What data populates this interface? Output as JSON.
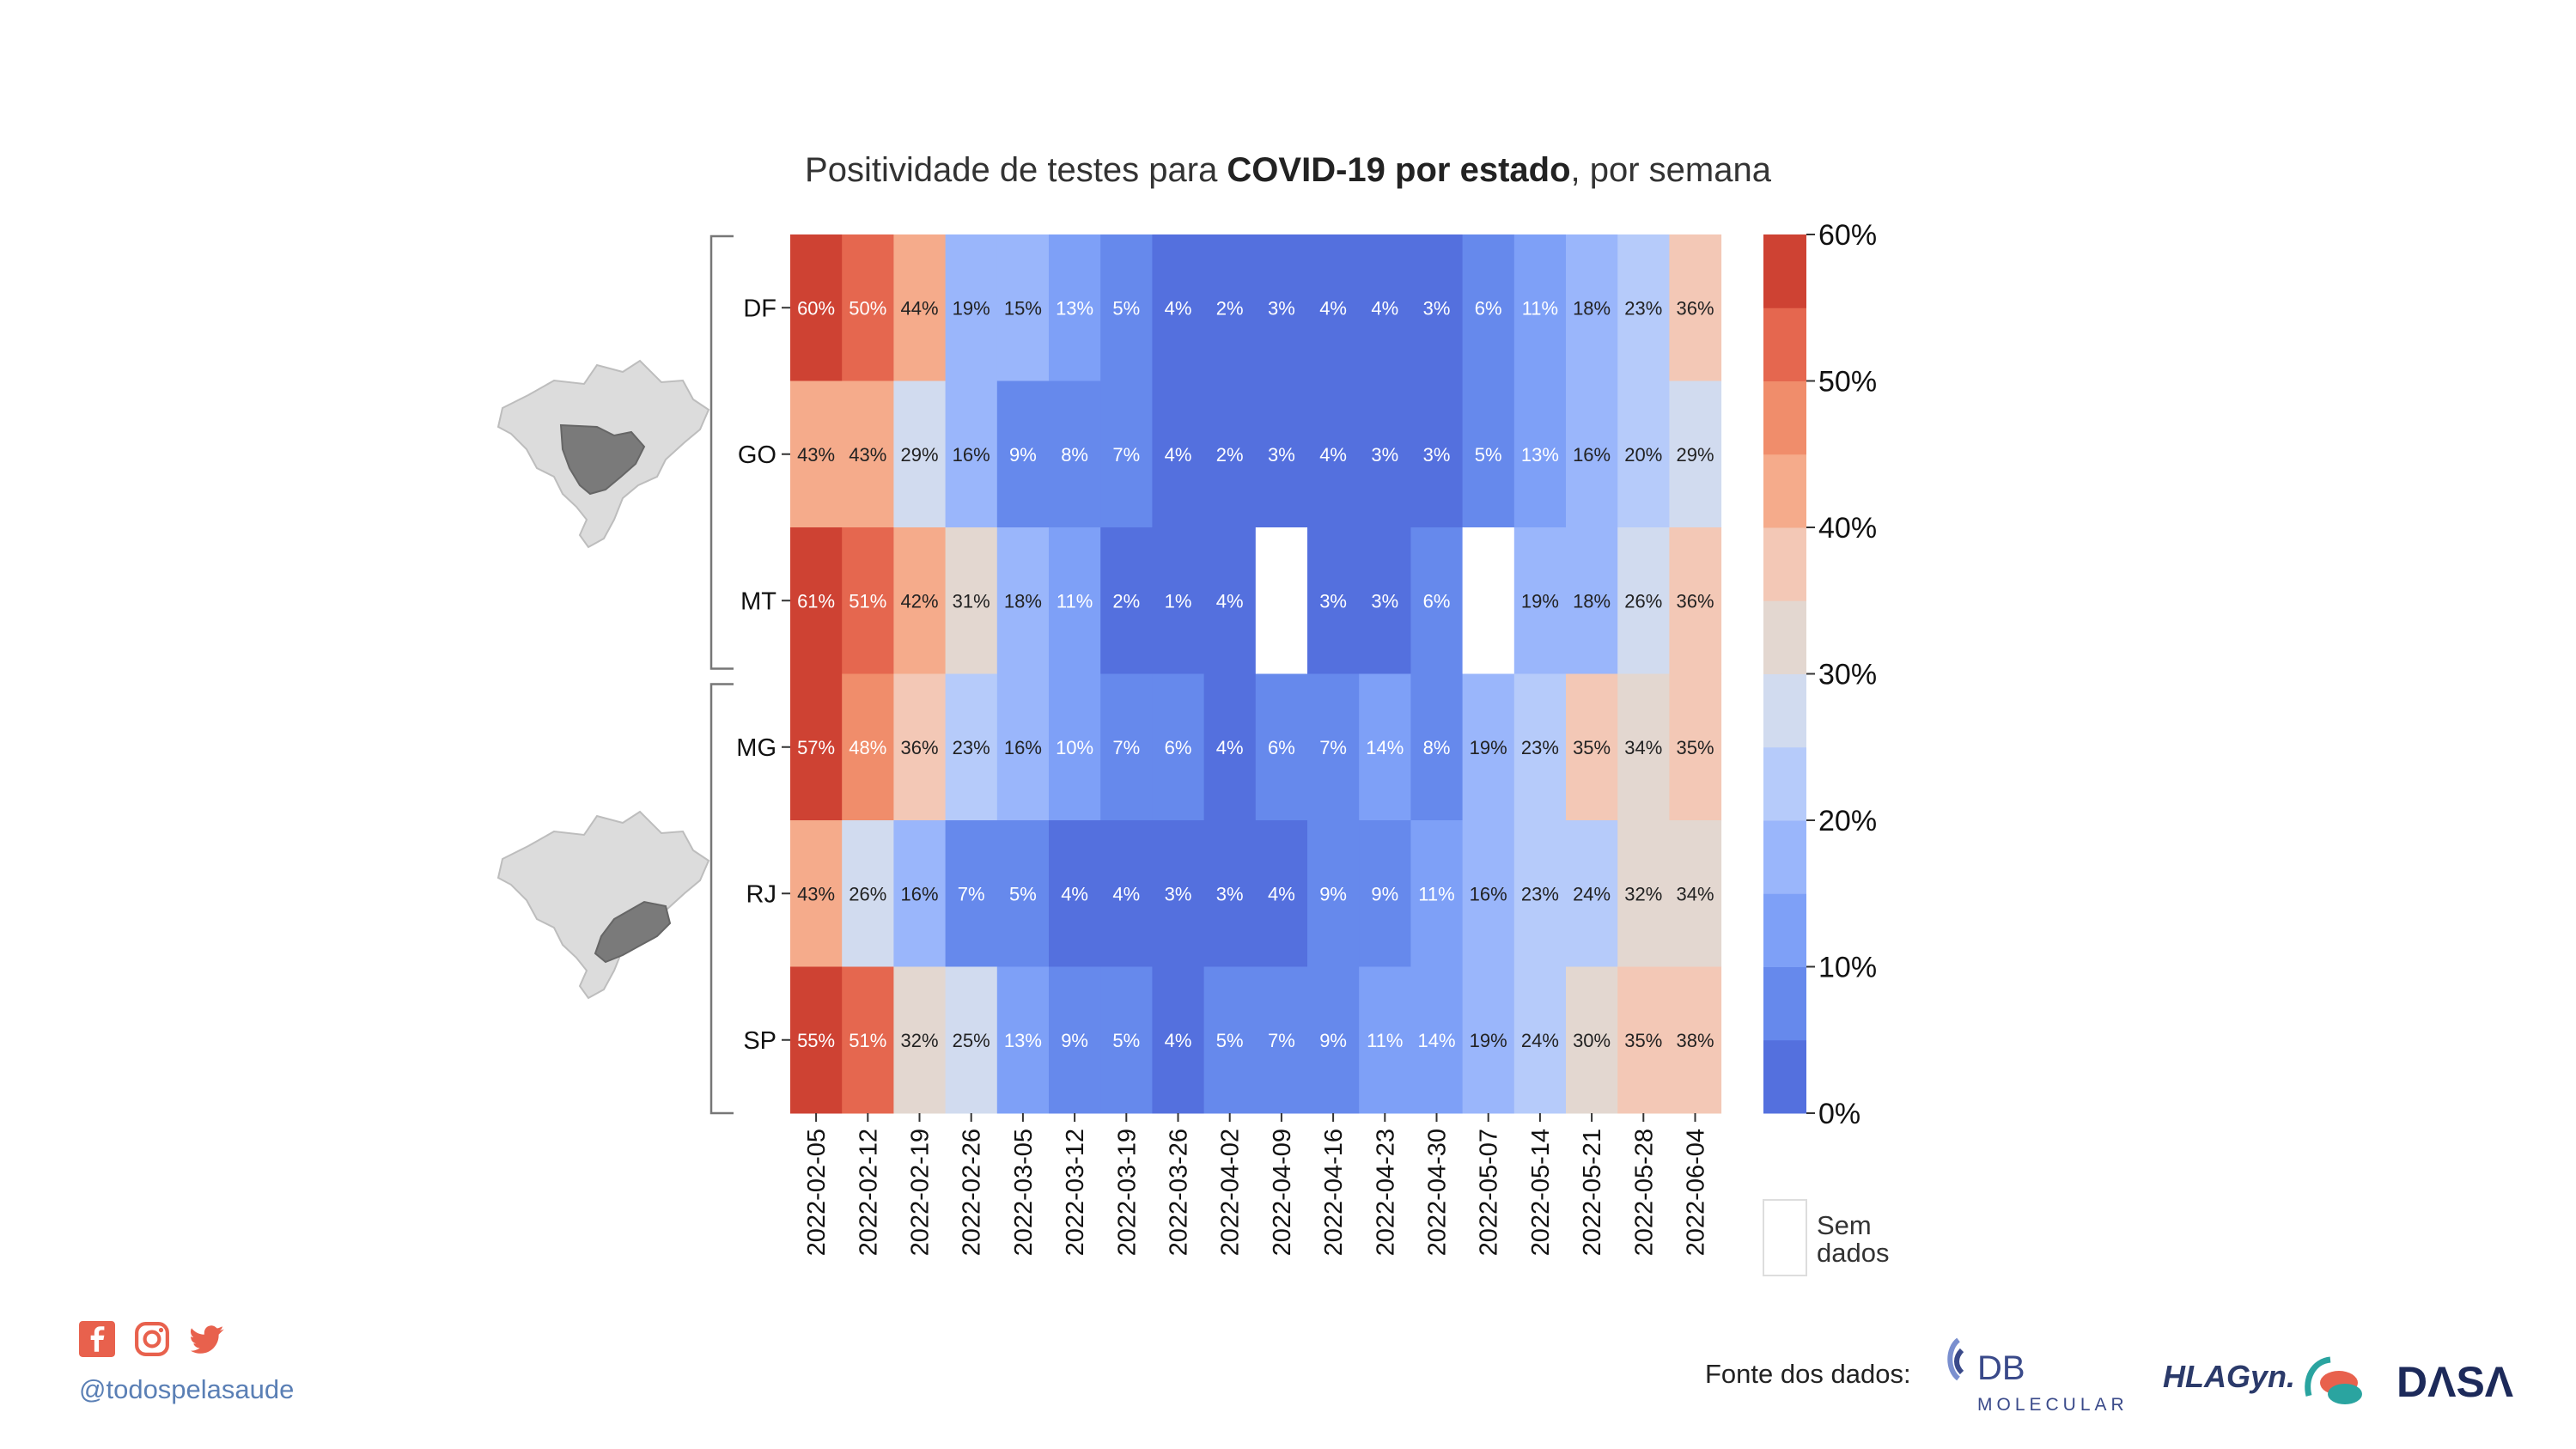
{
  "title": {
    "prefix": "Positividade de testes para ",
    "bold": "COVID-19 por estado",
    "suffix": ", por semana"
  },
  "chart_data": {
    "type": "heatmap",
    "title": "Positividade de testes para COVID-19 por estado, por semana",
    "x": [
      "2022-02-05",
      "2022-02-12",
      "2022-02-19",
      "2022-02-26",
      "2022-03-05",
      "2022-03-12",
      "2022-03-19",
      "2022-03-26",
      "2022-04-02",
      "2022-04-09",
      "2022-04-16",
      "2022-04-23",
      "2022-04-30",
      "2022-05-07",
      "2022-05-14",
      "2022-05-21",
      "2022-05-28",
      "2022-06-04"
    ],
    "y": [
      "DF",
      "GO",
      "MT",
      "MG",
      "RJ",
      "SP"
    ],
    "groups": [
      [
        "DF",
        "GO",
        "MT"
      ],
      [
        "MG",
        "RJ",
        "SP"
      ]
    ],
    "values": [
      [
        60,
        50,
        44,
        19,
        15,
        13,
        5,
        4,
        2,
        3,
        4,
        4,
        3,
        6,
        11,
        18,
        23,
        36
      ],
      [
        43,
        43,
        29,
        16,
        9,
        8,
        7,
        4,
        2,
        3,
        4,
        3,
        3,
        5,
        13,
        16,
        20,
        29
      ],
      [
        61,
        51,
        42,
        31,
        18,
        11,
        2,
        1,
        4,
        null,
        3,
        3,
        6,
        null,
        19,
        18,
        26,
        36
      ],
      [
        57,
        48,
        36,
        23,
        16,
        10,
        7,
        6,
        4,
        6,
        7,
        14,
        8,
        19,
        23,
        35,
        34,
        35
      ],
      [
        43,
        26,
        16,
        7,
        5,
        4,
        4,
        3,
        3,
        4,
        9,
        9,
        11,
        16,
        23,
        24,
        32,
        34
      ],
      [
        55,
        51,
        32,
        25,
        13,
        9,
        5,
        4,
        5,
        7,
        9,
        11,
        14,
        19,
        24,
        30,
        35,
        38
      ]
    ],
    "value_suffix": "%",
    "colorbar": {
      "min": 0,
      "max": 60,
      "step": 5,
      "ticks": [
        0,
        10,
        20,
        30,
        40,
        50,
        60
      ],
      "tick_labels": [
        "0%",
        "10%",
        "20%",
        "30%",
        "40%",
        "50%",
        "60%"
      ],
      "colors": [
        "#5470de",
        "#6689ec",
        "#7ea0f7",
        "#9ab6fb",
        "#b6cbfa",
        "#d1dbef",
        "#e3d7d0",
        "#f3c8b6",
        "#f5ab8b",
        "#f08d6b",
        "#e5674f",
        "#ce4233"
      ]
    },
    "no_data": {
      "label_line1": "Sem",
      "label_line2": "dados",
      "color": "#ffffff"
    }
  },
  "footer": {
    "handle": "@todospelasaude",
    "sources_label": "Fonte dos dados:",
    "logos": [
      {
        "name": "db-molecular",
        "text_main": "DB",
        "text_sub": "MOLECULAR",
        "color": "#3a4a8a"
      },
      {
        "name": "hlagyn",
        "text_main": "HLAGyn.",
        "color": "#2b3a6a"
      },
      {
        "name": "dasa",
        "text_main": "DΛSΛ",
        "color": "#1d2a5a"
      }
    ],
    "social_icons": [
      "facebook-icon",
      "instagram-icon",
      "twitter-icon"
    ],
    "accent": "#e8614d"
  }
}
